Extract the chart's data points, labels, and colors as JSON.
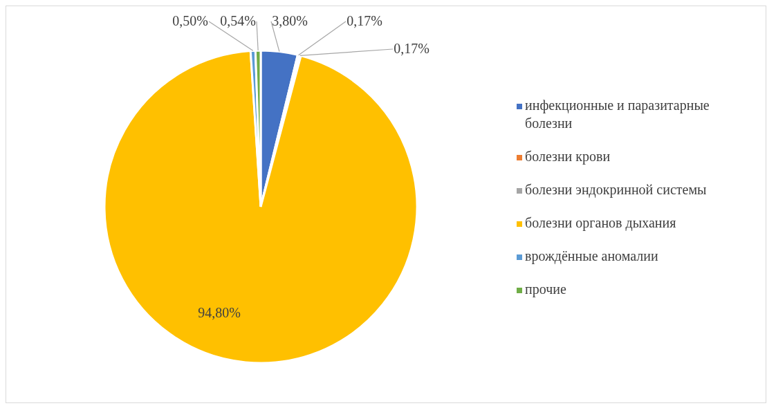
{
  "chart_data": {
    "type": "pie",
    "categories": [
      "инфекционные и паразитарные болезни",
      "болезни крови",
      "болезни эндокринной системы",
      "болезни органов дыхания",
      "врождённые аномалии",
      "прочие"
    ],
    "values": [
      3.8,
      0.17,
      0.17,
      94.8,
      0.5,
      0.54
    ],
    "value_labels": [
      "3,80%",
      "0,17%",
      "0,17%",
      "94,80%",
      "0,50%",
      "0,54%"
    ],
    "colors": [
      "#4472c4",
      "#ed7d31",
      "#a5a5a5",
      "#ffc000",
      "#5b9bd5",
      "#70ad47"
    ],
    "legend": "right"
  }
}
